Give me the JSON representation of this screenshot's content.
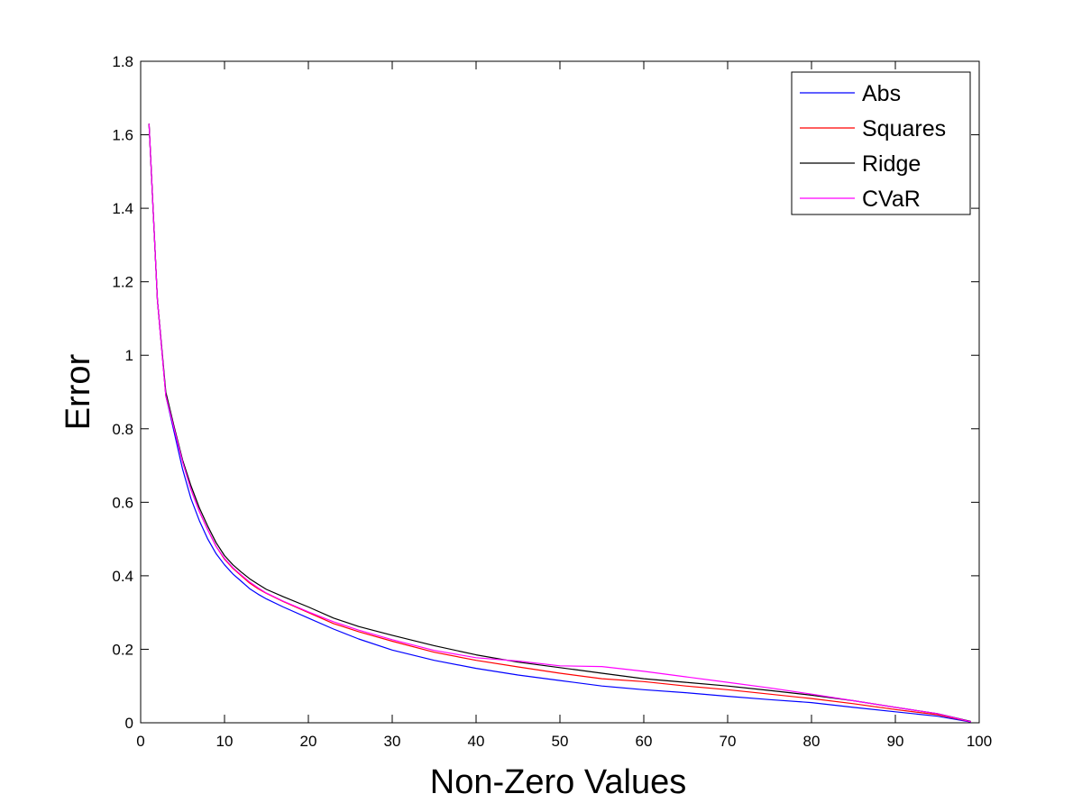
{
  "chart_data": {
    "type": "line",
    "title": "",
    "xlabel": "Non-Zero Values",
    "ylabel": "Error",
    "xlim": [
      0,
      100
    ],
    "ylim": [
      0,
      1.8
    ],
    "xticks": [
      0,
      10,
      20,
      30,
      40,
      50,
      60,
      70,
      80,
      90,
      100
    ],
    "yticks": [
      0,
      0.2,
      0.4,
      0.6,
      0.8,
      1,
      1.2,
      1.4,
      1.6,
      1.8
    ],
    "xtick_labels": [
      "0",
      "10",
      "20",
      "30",
      "40",
      "50",
      "60",
      "70",
      "80",
      "90",
      "100"
    ],
    "ytick_labels": [
      "0",
      "0.2",
      "0.4",
      "0.6",
      "0.8",
      "1",
      "1.2",
      "1.4",
      "1.6",
      "1.8"
    ],
    "grid": false,
    "legend_position": "top-right",
    "x": [
      1,
      2,
      3,
      4,
      5,
      6,
      7,
      8,
      9,
      10,
      11,
      12,
      13,
      14,
      15,
      17,
      20,
      23,
      26,
      30,
      35,
      40,
      45,
      50,
      55,
      60,
      65,
      70,
      75,
      80,
      85,
      90,
      95,
      99
    ],
    "series": [
      {
        "name": "Abs",
        "color": "#0000ff",
        "values": [
          1.63,
          1.15,
          0.89,
          0.79,
          0.69,
          0.61,
          0.55,
          0.5,
          0.46,
          0.43,
          0.405,
          0.385,
          0.365,
          0.35,
          0.337,
          0.315,
          0.285,
          0.255,
          0.228,
          0.198,
          0.17,
          0.148,
          0.13,
          0.115,
          0.1,
          0.09,
          0.082,
          0.072,
          0.063,
          0.055,
          0.042,
          0.03,
          0.018,
          0.002
        ]
      },
      {
        "name": "Squares",
        "color": "#ff0000",
        "values": [
          1.63,
          1.15,
          0.89,
          0.8,
          0.71,
          0.635,
          0.575,
          0.525,
          0.48,
          0.445,
          0.42,
          0.4,
          0.38,
          0.365,
          0.352,
          0.33,
          0.3,
          0.27,
          0.248,
          0.222,
          0.192,
          0.17,
          0.152,
          0.135,
          0.12,
          0.112,
          0.1,
          0.09,
          0.078,
          0.066,
          0.052,
          0.036,
          0.022,
          0.003
        ]
      },
      {
        "name": "Ridge",
        "color": "#000000",
        "values": [
          1.63,
          1.15,
          0.9,
          0.805,
          0.715,
          0.645,
          0.585,
          0.535,
          0.49,
          0.455,
          0.43,
          0.41,
          0.392,
          0.377,
          0.363,
          0.343,
          0.315,
          0.285,
          0.262,
          0.238,
          0.21,
          0.185,
          0.165,
          0.15,
          0.135,
          0.12,
          0.11,
          0.1,
          0.088,
          0.075,
          0.06,
          0.042,
          0.025,
          0.004
        ]
      },
      {
        "name": "CVaR",
        "color": "#ff00ff",
        "values": [
          1.63,
          1.15,
          0.89,
          0.8,
          0.71,
          0.635,
          0.575,
          0.525,
          0.48,
          0.447,
          0.422,
          0.402,
          0.383,
          0.367,
          0.353,
          0.331,
          0.302,
          0.275,
          0.252,
          0.226,
          0.197,
          0.177,
          0.168,
          0.155,
          0.153,
          0.14,
          0.125,
          0.11,
          0.095,
          0.078,
          0.06,
          0.042,
          0.025,
          0.003
        ]
      }
    ]
  }
}
